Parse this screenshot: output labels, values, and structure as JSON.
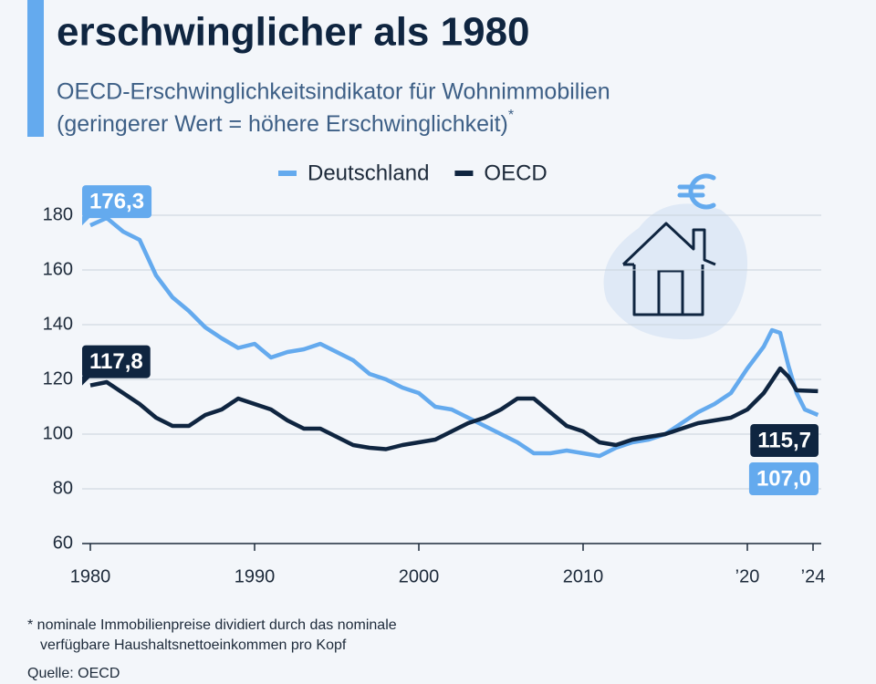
{
  "chart_data": {
    "type": "line",
    "title": "erschwinglicher als 1980",
    "subtitle": [
      "OECD-Erschwinglichkeitsindikator für Wohnimmobilien",
      "(geringerer Wert = höhere Erschwinglichkeit)"
    ],
    "subtitle_mark": "*",
    "footnote": [
      "* nominale Immobilienpreise dividiert durch das nominale",
      "verfügbare Haushaltsnettoeinkommen pro Kopf"
    ],
    "source": "Quelle: OECD",
    "xlim": [
      1979.5,
      2024.5
    ],
    "xticks": [
      1980,
      1990,
      2000,
      2010,
      {
        "value": 2020,
        "label": "’20"
      },
      {
        "value": 2024,
        "label": "’24"
      }
    ],
    "ylim": [
      60,
      180
    ],
    "yticks": [
      60,
      80,
      100,
      120,
      140,
      160,
      180
    ],
    "grid": true,
    "legend": "top",
    "series": [
      {
        "name": "Deutschland",
        "color": "#64aaee",
        "x": [
          1980,
          1981,
          1982,
          1983,
          1984,
          1985,
          1986,
          1987,
          1988,
          1989,
          1990,
          1991,
          1992,
          1993,
          1994,
          1995,
          1996,
          1997,
          1998,
          1999,
          2000,
          2001,
          2002,
          2003,
          2004,
          2005,
          2006,
          2007,
          2008,
          2009,
          2010,
          2011,
          2012,
          2013,
          2014,
          2015,
          2016,
          2017,
          2018,
          2019,
          2020,
          2021,
          2021.5,
          2022,
          2022.5,
          2023,
          2023.5,
          2024.3
        ],
        "values": [
          176.3,
          179,
          174,
          171,
          158,
          150,
          145,
          139,
          135,
          131.5,
          133,
          128,
          130,
          131,
          133,
          130,
          127,
          122,
          120,
          117,
          115,
          110,
          109,
          106,
          103,
          100,
          97,
          93,
          93,
          94,
          93,
          92,
          95,
          97,
          98,
          100,
          104,
          108,
          111,
          115,
          124,
          132,
          138,
          137,
          125,
          115,
          109,
          107.0
        ],
        "value_labels": [
          "176,3",
          null,
          null,
          null,
          null,
          null,
          null,
          null,
          null,
          null,
          null,
          null,
          null,
          null,
          null,
          null,
          null,
          null,
          null,
          null,
          null,
          null,
          null,
          null,
          null,
          null,
          null,
          null,
          null,
          null,
          null,
          null,
          null,
          null,
          null,
          null,
          null,
          null,
          null,
          null,
          null,
          null,
          null,
          null,
          null,
          null,
          null,
          "107,0"
        ]
      },
      {
        "name": "OECD",
        "color": "#0f2540",
        "x": [
          1980,
          1981,
          1982,
          1983,
          1984,
          1985,
          1986,
          1987,
          1988,
          1989,
          1990,
          1991,
          1992,
          1993,
          1994,
          1995,
          1996,
          1997,
          1998,
          1999,
          2000,
          2001,
          2002,
          2003,
          2004,
          2005,
          2006,
          2007,
          2008,
          2009,
          2010,
          2011,
          2012,
          2013,
          2014,
          2015,
          2016,
          2017,
          2018,
          2019,
          2020,
          2021,
          2022,
          2022.5,
          2023,
          2024.3
        ],
        "values": [
          117.8,
          119,
          115,
          111,
          106,
          103,
          103,
          107,
          109,
          113,
          111,
          109,
          105,
          102,
          102,
          99,
          96,
          95,
          94.5,
          96,
          97,
          98,
          101,
          104,
          106,
          109,
          113,
          113,
          108,
          103,
          101,
          97,
          96,
          98,
          99,
          100,
          102,
          104,
          105,
          106,
          109,
          115,
          124,
          121,
          116,
          115.7
        ],
        "value_labels": [
          "117,8",
          null,
          null,
          null,
          null,
          null,
          null,
          null,
          null,
          null,
          null,
          null,
          null,
          null,
          null,
          null,
          null,
          null,
          null,
          null,
          null,
          null,
          null,
          null,
          null,
          null,
          null,
          null,
          null,
          null,
          null,
          null,
          null,
          null,
          null,
          null,
          null,
          null,
          null,
          null,
          null,
          null,
          null,
          null,
          null,
          "115,7"
        ]
      }
    ]
  }
}
